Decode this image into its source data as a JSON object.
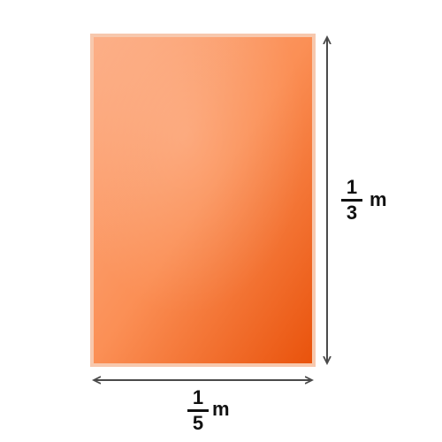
{
  "rectangle": {
    "fill_light": "#fcae86",
    "fill_mid": "#fb8f55",
    "fill_dark": "#e9520b",
    "border_color": "#f7c8ad"
  },
  "arrow_color": "#4a4a4a",
  "height_label": {
    "numerator": "1",
    "denominator": "3",
    "unit": "m"
  },
  "width_label": {
    "numerator": "1",
    "denominator": "5",
    "unit": "m"
  }
}
